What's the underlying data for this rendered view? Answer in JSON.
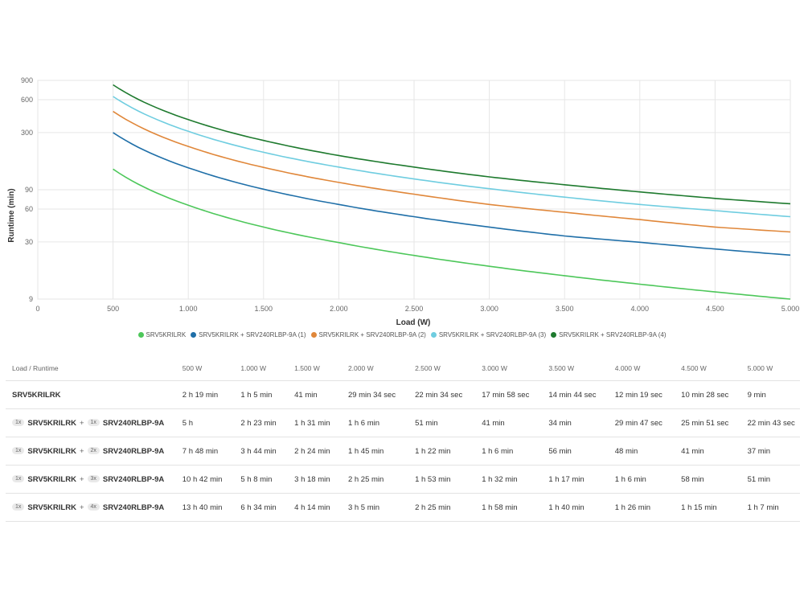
{
  "chart_data": {
    "type": "line",
    "xlabel": "Load (W)",
    "ylabel": "Runtime (min)",
    "xlim": [
      0,
      5000
    ],
    "ylim": [
      9,
      900
    ],
    "y_scale": "log",
    "grid": true,
    "legend_position": "bottom",
    "x_ticks": [
      0,
      500,
      1000,
      1500,
      2000,
      2500,
      3000,
      3500,
      4000,
      4500,
      5000
    ],
    "x_tick_labels": [
      "0",
      "500",
      "1.000",
      "1.500",
      "2.000",
      "2.500",
      "3.000",
      "3.500",
      "4.000",
      "4.500",
      "5.000"
    ],
    "y_ticks": [
      9,
      30,
      60,
      90,
      300,
      600,
      900
    ],
    "y_tick_labels": [
      "9",
      "30",
      "60",
      "90",
      "300",
      "600",
      "900"
    ],
    "x": [
      500,
      1000,
      1500,
      2000,
      2500,
      3000,
      3500,
      4000,
      4500,
      5000
    ],
    "series": [
      {
        "name": "SRV5KRILRK",
        "color": "#4dc75a",
        "values": [
          139,
          65,
          41,
          29.57,
          22.57,
          17.97,
          14.73,
          12.32,
          10.47,
          9
        ]
      },
      {
        "name": "SRV5KRILRK + SRV240RLBP-9A (1)",
        "color": "#1f6fa8",
        "values": [
          300,
          143,
          91,
          66,
          51,
          41,
          34,
          29.78,
          25.85,
          22.72
        ]
      },
      {
        "name": "SRV5KRILRK + SRV240RLBP-9A (2)",
        "color": "#e0873a",
        "values": [
          468,
          224,
          144,
          105,
          82,
          66,
          56,
          48,
          41,
          37
        ]
      },
      {
        "name": "SRV5KRILRK + SRV240RLBP-9A (3)",
        "color": "#6fcde0",
        "values": [
          642,
          308,
          198,
          145,
          113,
          92,
          77,
          66,
          58,
          51
        ]
      },
      {
        "name": "SRV5KRILRK + SRV240RLBP-9A (4)",
        "color": "#1e7a2e",
        "values": [
          820,
          394,
          254,
          185,
          145,
          118,
          100,
          86,
          75,
          67
        ]
      }
    ]
  },
  "table": {
    "header_label": "Load / Runtime",
    "columns": [
      "500 W",
      "1.000 W",
      "1.500 W",
      "2.000 W",
      "2.500 W",
      "3.000 W",
      "3.500 W",
      "4.000 W",
      "4.500 W",
      "5.000 W"
    ],
    "rows": [
      {
        "qty1": "",
        "name1": "SRV5KRILRK",
        "plus": "",
        "qty2": "",
        "name2": "",
        "cells": [
          "2 h 19 min",
          "1 h 5 min",
          "41 min",
          "29 min 34 sec",
          "22 min 34 sec",
          "17 min 58 sec",
          "14 min 44 sec",
          "12 min 19 sec",
          "10 min 28 sec",
          "9 min"
        ]
      },
      {
        "qty1": "1x",
        "name1": "SRV5KRILRK",
        "plus": "+",
        "qty2": "1x",
        "name2": "SRV240RLBP-9A",
        "cells": [
          "5 h",
          "2 h 23 min",
          "1 h 31 min",
          "1 h 6 min",
          "51 min",
          "41 min",
          "34 min",
          "29 min 47 sec",
          "25 min 51 sec",
          "22 min 43 sec"
        ]
      },
      {
        "qty1": "1x",
        "name1": "SRV5KRILRK",
        "plus": "+",
        "qty2": "2x",
        "name2": "SRV240RLBP-9A",
        "cells": [
          "7 h 48 min",
          "3 h 44 min",
          "2 h 24 min",
          "1 h 45 min",
          "1 h 22 min",
          "1 h 6 min",
          "56 min",
          "48 min",
          "41 min",
          "37 min"
        ]
      },
      {
        "qty1": "1x",
        "name1": "SRV5KRILRK",
        "plus": "+",
        "qty2": "3x",
        "name2": "SRV240RLBP-9A",
        "cells": [
          "10 h 42 min",
          "5 h 8 min",
          "3 h 18 min",
          "2 h 25 min",
          "1 h 53 min",
          "1 h 32 min",
          "1 h 17 min",
          "1 h 6 min",
          "58 min",
          "51 min"
        ]
      },
      {
        "qty1": "1x",
        "name1": "SRV5KRILRK",
        "plus": "+",
        "qty2": "4x",
        "name2": "SRV240RLBP-9A",
        "cells": [
          "13 h 40 min",
          "6 h 34 min",
          "4 h 14 min",
          "3 h 5 min",
          "2 h 25 min",
          "1 h 58 min",
          "1 h 40 min",
          "1 h 26 min",
          "1 h 15 min",
          "1 h 7 min"
        ]
      }
    ]
  }
}
